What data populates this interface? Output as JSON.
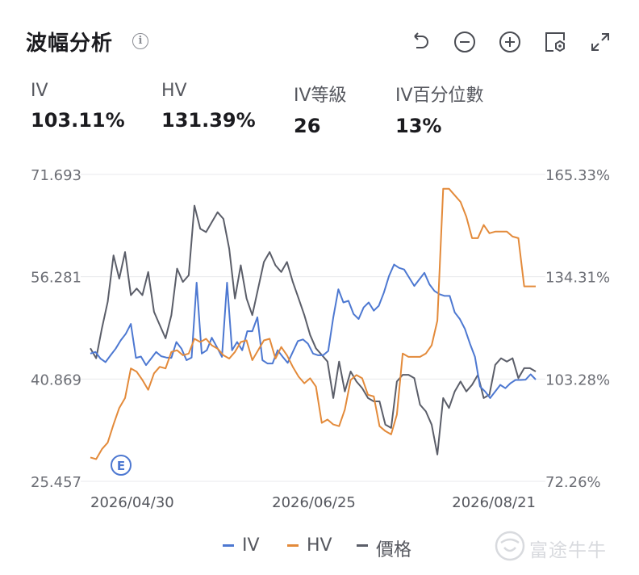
{
  "header": {
    "title": "波幅分析",
    "tools": [
      "undo-icon",
      "zoom-out-icon",
      "zoom-in-icon",
      "settings-icon",
      "expand-icon"
    ]
  },
  "stats": [
    {
      "label": "IV",
      "value": "103.11%"
    },
    {
      "label": "HV",
      "value": "131.39%"
    },
    {
      "label": "IV等級",
      "value": "26"
    },
    {
      "label": "IV百分位數",
      "value": "13%"
    }
  ],
  "chart_data": {
    "type": "line",
    "x_labels": [
      "2026/04/30",
      "2026/06/25",
      "2026/08/21"
    ],
    "left_axis": {
      "ticks": [
        "71.693",
        "56.281",
        "40.869",
        "25.457"
      ],
      "range": [
        25.457,
        71.693
      ]
    },
    "right_axis": {
      "ticks": [
        "165.33%",
        "134.31%",
        "103.28%",
        "72.26%"
      ],
      "range": [
        72.26,
        165.33
      ]
    },
    "grid": true,
    "event_marker": "E",
    "colors": {
      "IV": "#4d78d1",
      "HV": "#e38a3a",
      "價格": "#5b5e69"
    },
    "series": [
      {
        "name": "IV",
        "axis": "right",
        "values": [
          111.0,
          111.5,
          109.5,
          108.4,
          110.5,
          112.5,
          115.0,
          117.0,
          120.0,
          109.7,
          110.1,
          107.5,
          109.5,
          111.5,
          110.2,
          109.8,
          109.7,
          114.5,
          112.5,
          109.0,
          109.8,
          132.5,
          111.0,
          112.0,
          115.8,
          113.0,
          110.0,
          132.5,
          112.0,
          114.5,
          112.0,
          117.8,
          117.8,
          122.0,
          109.0,
          108.0,
          108.0,
          112.0,
          110.0,
          108.2,
          111.5,
          114.8,
          115.3,
          114.0,
          111.0,
          110.5,
          110.5,
          111.8,
          122.0,
          130.5,
          126.5,
          127.0,
          123.0,
          121.5,
          125.0,
          126.5,
          124.0,
          125.5,
          129.5,
          134.5,
          138.0,
          137.0,
          136.5,
          134.0,
          131.5,
          133.5,
          135.5,
          132.0,
          130.0,
          129.0,
          128.5,
          128.5,
          123.5,
          121.5,
          118.5,
          114.0,
          110.0,
          101.0,
          99.5,
          97.5,
          99.5,
          101.5,
          100.5,
          102.0,
          103.0,
          103.0,
          103.1,
          104.7,
          103.11
        ]
      },
      {
        "name": "HV",
        "axis": "right",
        "values": [
          79.5,
          79.0,
          82.0,
          84.0,
          89.5,
          94.5,
          97.5,
          106.5,
          105.5,
          103.0,
          100.0,
          105.0,
          107.0,
          106.5,
          111.5,
          112.0,
          110.5,
          111.0,
          115.5,
          114.5,
          115.5,
          113.5,
          112.5,
          110.5,
          109.5,
          111.5,
          114.5,
          115.0,
          109.0,
          112.0,
          115.0,
          115.5,
          109.5,
          113.0,
          110.5,
          107.0,
          104.0,
          102.0,
          103.5,
          101.0,
          90.0,
          91.0,
          89.5,
          89.0,
          94.0,
          103.0,
          104.5,
          103.5,
          98.5,
          98.0,
          89.0,
          87.5,
          86.5,
          92.5,
          111.0,
          110.0,
          110.0,
          110.0,
          111.0,
          113.5,
          121.0,
          161.0,
          161.0,
          159.0,
          157.0,
          152.5,
          146.0,
          146.0,
          150.0,
          147.5,
          148.0,
          148.0,
          148.0,
          146.5,
          146.0,
          131.39,
          131.39,
          131.39
        ]
      },
      {
        "name": "價格",
        "axis": "left",
        "values": [
          45.5,
          44.0,
          48.5,
          52.5,
          59.5,
          56.0,
          60.0,
          53.5,
          54.5,
          53.5,
          57.0,
          51.0,
          49.0,
          47.0,
          50.5,
          57.5,
          55.5,
          56.5,
          67.0,
          63.5,
          63.0,
          64.5,
          66.0,
          65.0,
          60.5,
          53.0,
          58.0,
          53.0,
          50.5,
          54.5,
          58.5,
          60.0,
          58.0,
          57.0,
          58.5,
          55.5,
          53.0,
          50.5,
          47.5,
          45.5,
          44.5,
          43.5,
          38.0,
          43.5,
          39.0,
          42.0,
          40.5,
          39.5,
          38.0,
          37.5,
          37.5,
          34.0,
          33.5,
          40.5,
          41.5,
          41.5,
          41.0,
          37.0,
          36.0,
          34.0,
          29.5,
          38.0,
          36.5,
          39.0,
          40.5,
          39.0,
          40.0,
          41.5,
          38.0,
          38.5,
          43.0,
          44.0,
          43.5,
          44.0,
          41.0,
          42.5,
          42.5,
          42.0
        ]
      }
    ]
  },
  "legend": [
    "IV",
    "HV",
    "價格"
  ],
  "watermark": {
    "text": "富途牛牛"
  }
}
